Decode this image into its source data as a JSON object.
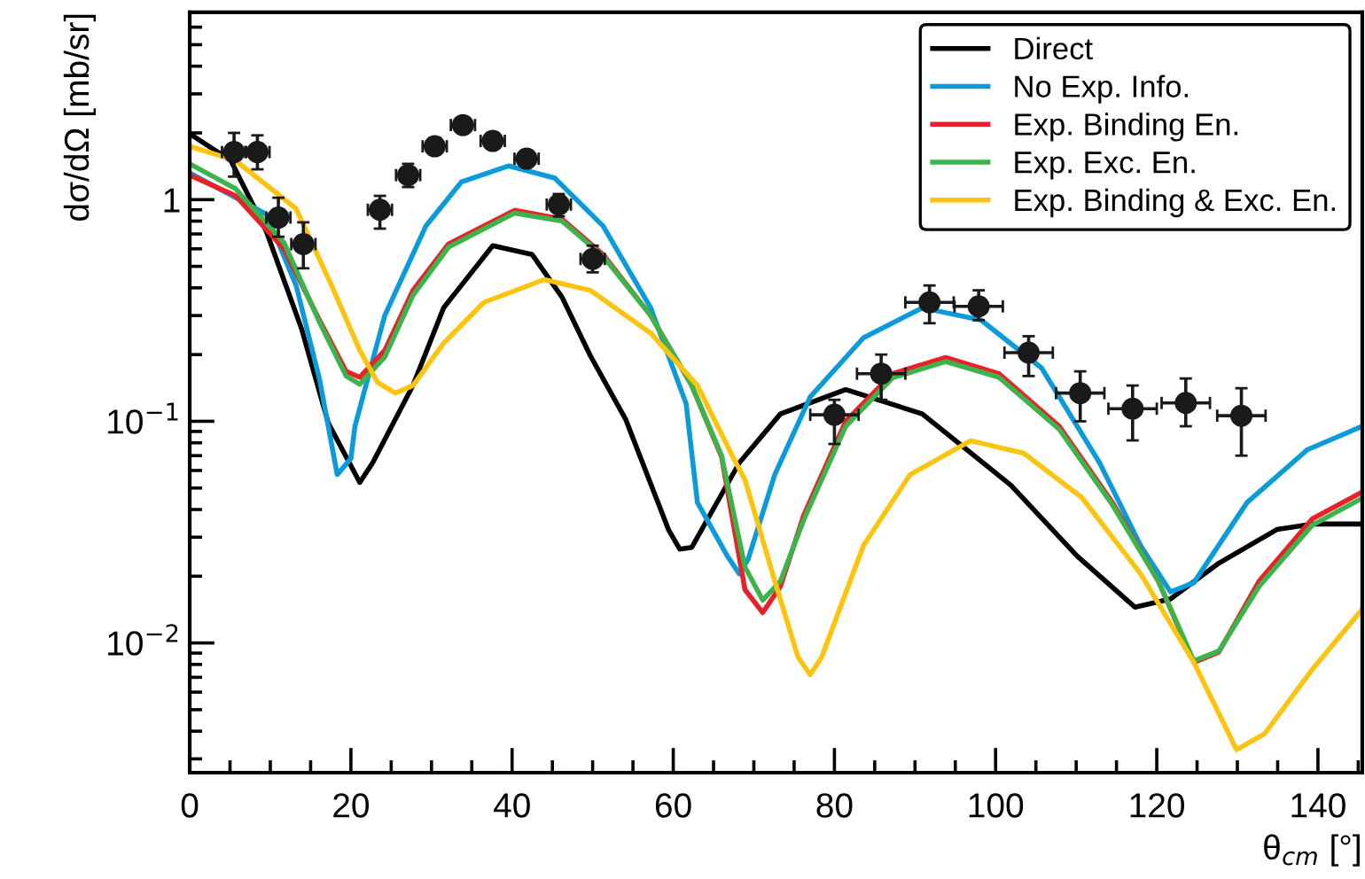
{
  "chart_data": {
    "type": "line",
    "xlabel": "θ$_{cm}$ [°]",
    "ylabel": "dσ/dΩ [mb/sr]",
    "xlim": [
      0,
      145.5
    ],
    "xticks": [
      0,
      20,
      40,
      60,
      80,
      100,
      120,
      140
    ],
    "ylim": [
      0.0026,
      7
    ],
    "yticks": [
      {
        "value": 0.01,
        "label": "10$^{−2}$"
      },
      {
        "value": 0.1,
        "label": "10$^{−1}$"
      },
      1
    ],
    "log": "y",
    "grid": false,
    "legend": "top right",
    "marker": "none",
    "line_style": "solid",
    "series": [
      {
        "name": "Direct",
        "color": "#000000",
        "x": [
          0,
          5.1,
          9.5,
          13.9,
          17.2,
          21.1,
          22.7,
          27.7,
          31.5,
          37.6,
          42.5,
          46.2,
          49.7,
          54.1,
          59.4,
          60.8,
          62.3,
          68.2,
          73.3,
          81.4,
          90.9,
          101.9,
          110.1,
          117.3,
          121.7,
          127.7,
          134.9,
          139.3,
          145.5
        ],
        "values": [
          1.98,
          1.5,
          0.72,
          0.26,
          0.098,
          0.053,
          0.065,
          0.145,
          0.325,
          0.62,
          0.565,
          0.363,
          0.198,
          0.102,
          0.0325,
          0.0265,
          0.027,
          0.065,
          0.108,
          0.139,
          0.108,
          0.0515,
          0.0247,
          0.0145,
          0.0158,
          0.0229,
          0.0325,
          0.0344,
          0.0344
        ]
      },
      {
        "name": "No Exp. Info.",
        "color": "#0b9bdb",
        "x": [
          0,
          9.5,
          13.2,
          16.1,
          18.3,
          20.0,
          20.5,
          24.2,
          29.3,
          33.7,
          39.6,
          45.3,
          51.3,
          57.2,
          61.6,
          63.0,
          66.7,
          68.2,
          69.3,
          72.6,
          77.0,
          83.6,
          90.9,
          98.2,
          105.7,
          112.9,
          118.0,
          121.7,
          124.6,
          131.2,
          138.7,
          145.5
        ],
        "values": [
          1.32,
          0.86,
          0.41,
          0.155,
          0.0575,
          0.068,
          0.095,
          0.3,
          0.76,
          1.2,
          1.42,
          1.25,
          0.76,
          0.325,
          0.12,
          0.043,
          0.0247,
          0.0205,
          0.0239,
          0.0575,
          0.129,
          0.238,
          0.325,
          0.286,
          0.174,
          0.065,
          0.0275,
          0.017,
          0.0187,
          0.043,
          0.0745,
          0.095
        ]
      },
      {
        "name": "Exp. Binding En.",
        "color": "#e8212a",
        "x": [
          0,
          5.7,
          11.7,
          16.1,
          19.4,
          21.1,
          24.2,
          27.7,
          32.1,
          40.3,
          46.2,
          51.3,
          57.2,
          62.3,
          66.0,
          68.9,
          71.1,
          73.3,
          76.2,
          81.4,
          87.2,
          93.8,
          100.4,
          107.9,
          114.5,
          120.2,
          124.6,
          127.7,
          132.7,
          139.3,
          145.5
        ],
        "values": [
          1.29,
          1.04,
          0.6,
          0.286,
          0.168,
          0.158,
          0.209,
          0.39,
          0.63,
          0.895,
          0.817,
          0.565,
          0.3,
          0.145,
          0.069,
          0.0174,
          0.0137,
          0.018,
          0.0377,
          0.1,
          0.164,
          0.194,
          0.164,
          0.095,
          0.043,
          0.019,
          0.00817,
          0.0091,
          0.019,
          0.0363,
          0.048
        ]
      },
      {
        "name": "Exp. Exc. En.",
        "color": "#3cb44b",
        "x": [
          0,
          5.7,
          11.7,
          16.1,
          19.4,
          21.1,
          24.2,
          27.7,
          32.1,
          40.3,
          46.2,
          51.3,
          57.2,
          62.3,
          66.0,
          68.9,
          71.1,
          73.3,
          76.2,
          81.4,
          87.2,
          93.8,
          100.4,
          107.9,
          114.5,
          120.2,
          124.6,
          127.7,
          132.7,
          139.3,
          145.5
        ],
        "values": [
          1.45,
          1.12,
          0.64,
          0.28,
          0.16,
          0.147,
          0.195,
          0.37,
          0.61,
          0.87,
          0.8,
          0.555,
          0.3,
          0.145,
          0.07,
          0.022,
          0.0156,
          0.019,
          0.036,
          0.095,
          0.157,
          0.186,
          0.158,
          0.092,
          0.042,
          0.019,
          0.0083,
          0.0092,
          0.018,
          0.034,
          0.045
        ]
      },
      {
        "name": "Exp. Binding & Exc. En.",
        "color": "#fcc40f",
        "x": [
          0,
          5.7,
          13.2,
          17.6,
          21.1,
          23.3,
          25.5,
          27.7,
          31.5,
          36.5,
          44.0,
          49.7,
          57.2,
          63.0,
          67.4,
          68.9,
          72.6,
          75.5,
          77.0,
          78.4,
          83.6,
          89.4,
          96.9,
          103.5,
          110.7,
          118.0,
          124.6,
          129.9,
          133.4,
          139.3,
          145.5
        ],
        "values": [
          1.74,
          1.5,
          0.91,
          0.41,
          0.209,
          0.15,
          0.134,
          0.145,
          0.225,
          0.344,
          0.436,
          0.39,
          0.25,
          0.145,
          0.069,
          0.0545,
          0.019,
          0.0086,
          0.0072,
          0.0086,
          0.0275,
          0.0575,
          0.0817,
          0.0718,
          0.0453,
          0.0205,
          0.00817,
          0.0033,
          0.0039,
          0.0076,
          0.0142
        ]
      },
      {
        "type": "scatter",
        "marker": "circle",
        "color": "#1a1a1a",
        "x": [
          5.5,
          8.4,
          11.0,
          14.1,
          23.6,
          27.1,
          30.4,
          33.9,
          37.6,
          41.8,
          45.8,
          50.0,
          80.0,
          85.8,
          91.8,
          97.9,
          104.1,
          110.5,
          117.0,
          123.6,
          130.5
        ],
        "values": [
          1.64,
          1.64,
          0.83,
          0.63,
          0.9,
          1.29,
          1.74,
          2.17,
          1.84,
          1.53,
          0.95,
          0.54,
          0.107,
          0.164,
          0.344,
          0.33,
          0.204,
          0.134,
          0.114,
          0.121,
          0.106
        ],
        "errors": [
          [
            1.27,
            2.0
          ],
          [
            1.37,
            1.95
          ],
          [
            0.68,
            1.02
          ],
          [
            0.49,
            0.79
          ],
          [
            0.74,
            1.04
          ],
          [
            1.14,
            1.45
          ],
          [
            1.6,
            1.9
          ],
          [
            2.0,
            2.35
          ],
          [
            1.7,
            2.0
          ],
          [
            1.42,
            1.65
          ],
          [
            0.84,
            1.06
          ],
          [
            0.47,
            0.62
          ],
          [
            0.079,
            0.125
          ],
          [
            0.125,
            0.2
          ],
          [
            0.277,
            0.41
          ],
          [
            0.286,
            0.39
          ],
          [
            0.16,
            0.242
          ],
          [
            0.1,
            0.168
          ],
          [
            0.082,
            0.145
          ],
          [
            0.095,
            0.156
          ],
          [
            0.07,
            0.141
          ]
        ],
        "xerrors": [
          1.5,
          1.5,
          1.5,
          1.5,
          1.5,
          1.5,
          1.5,
          1.5,
          1.5,
          1.5,
          1.5,
          1.5,
          3,
          3,
          3,
          3,
          3,
          3,
          3,
          3,
          3
        ]
      }
    ]
  }
}
